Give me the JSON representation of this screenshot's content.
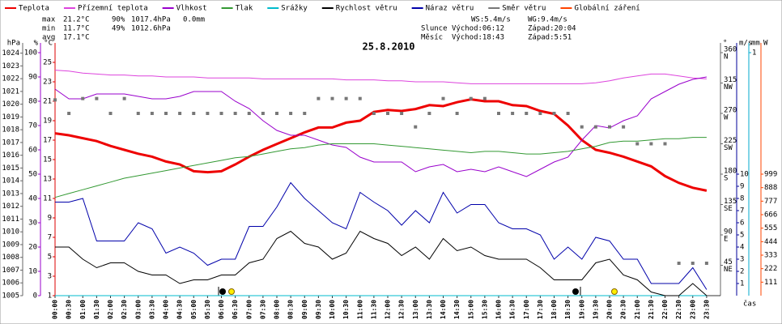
{
  "chart_data": {
    "type": "line",
    "title": "25.8.2010",
    "x_label": "čas",
    "stats": {
      "max": {
        "label": "max",
        "temp": "21.2°C",
        "hum": "90%",
        "press": "1017.4hPa",
        "rain": "0.0mm"
      },
      "min": {
        "label": "min",
        "temp": "11.7°C",
        "hum": "49%",
        "press": "1012.6hPa"
      },
      "avg": {
        "label": "avg",
        "temp": "17.1°C"
      },
      "wind": {
        "ws": "WS:5.4m/s",
        "wg": "WG:9.4m/s"
      },
      "sun": {
        "label": "Slunce",
        "rise": "Východ:06:12",
        "set": "Západ:20:04"
      },
      "moon": {
        "label": "Měsíc",
        "rise": "Východ:18:43",
        "set": "Západ:5:51"
      }
    },
    "categories": [
      "00:00",
      "00:30",
      "01:00",
      "01:30",
      "02:00",
      "02:30",
      "03:00",
      "03:30",
      "04:00",
      "04:30",
      "05:00",
      "05:30",
      "06:00",
      "06:30",
      "07:00",
      "07:30",
      "08:00",
      "08:30",
      "09:00",
      "09:30",
      "10:00",
      "10:30",
      "11:00",
      "11:30",
      "12:00",
      "12:30",
      "13:00",
      "13:30",
      "14:00",
      "14:30",
      "15:00",
      "15:30",
      "16:00",
      "16:30",
      "17:00",
      "17:30",
      "18:00",
      "18:30",
      "19:00",
      "19:30",
      "20:00",
      "20:30",
      "21:00",
      "21:30",
      "22:00",
      "22:30",
      "23:00",
      "23:30"
    ],
    "axes": {
      "press": {
        "unit": "hPa",
        "side": "left",
        "color": "#666666",
        "ylim": [
          1005,
          1024.8
        ],
        "yticks": [
          1005,
          1006,
          1007,
          1008,
          1009,
          1010,
          1011,
          1012,
          1013,
          1014,
          1015,
          1016,
          1017,
          1018,
          1019,
          1020,
          1021,
          1022,
          1023,
          1024
        ]
      },
      "hum": {
        "unit": "%",
        "side": "left",
        "color": "#9900cc",
        "ylim": [
          0,
          104
        ],
        "yticks": [
          0,
          10,
          20,
          30,
          40,
          50,
          60,
          70,
          80,
          90,
          100
        ]
      },
      "temp": {
        "unit": "°C",
        "side": "left",
        "color": "#dd0000",
        "ylim": [
          1,
          27
        ],
        "yticks": [
          1,
          3,
          5,
          7,
          9,
          11,
          13,
          15,
          17,
          19,
          21,
          23,
          25
        ]
      },
      "dir": {
        "unit": "°",
        "side": "right",
        "color": "#666666",
        "ylim": [
          0,
          374.4
        ],
        "yticks": [
          45,
          90,
          135,
          180,
          225,
          270,
          315,
          360
        ],
        "compass": [
          "NE",
          "E",
          "SE",
          "S",
          "SW",
          "W",
          "NW",
          "N"
        ]
      },
      "wind": {
        "unit": "m/s",
        "side": "right",
        "color": "#000099",
        "ylim": [
          0,
          20.8
        ],
        "yticks": [
          1,
          2,
          3,
          4,
          5,
          6,
          7,
          8,
          9,
          10
        ]
      },
      "rain": {
        "unit": "mm",
        "side": "right",
        "color": "#00aacc",
        "ylim": [
          0,
          1.04
        ],
        "yticks": [
          1
        ]
      },
      "rad": {
        "unit": "W",
        "side": "right",
        "color": "#ff4400",
        "ylim": [
          0,
          2078
        ],
        "yticks": [
          111,
          222,
          333,
          444,
          555,
          666,
          777,
          888,
          999
        ]
      }
    },
    "series": [
      {
        "name": "Teplota",
        "color": "#ee0000",
        "axis": "temp",
        "width": 3,
        "values": [
          17.7,
          17.5,
          17.2,
          16.9,
          16.4,
          16.0,
          15.6,
          15.3,
          14.8,
          14.5,
          13.8,
          13.7,
          13.8,
          14.5,
          15.3,
          16.0,
          16.6,
          17.2,
          17.8,
          18.3,
          18.3,
          18.8,
          19.0,
          19.9,
          20.1,
          20.0,
          20.2,
          20.6,
          20.5,
          20.9,
          21.2,
          21.0,
          21.0,
          20.6,
          20.5,
          20.0,
          19.7,
          18.5,
          17.0,
          16.0,
          15.7,
          15.3,
          14.8,
          14.3,
          13.3,
          12.6,
          12.1,
          11.8
        ]
      },
      {
        "name": "Přízemní teplota",
        "color": "#dd44dd",
        "axis": "temp",
        "width": 1,
        "values": [
          24.2,
          24.1,
          23.9,
          23.8,
          23.7,
          23.7,
          23.6,
          23.6,
          23.5,
          23.5,
          23.5,
          23.4,
          23.4,
          23.4,
          23.4,
          23.3,
          23.3,
          23.3,
          23.3,
          23.3,
          23.3,
          23.2,
          23.2,
          23.2,
          23.1,
          23.1,
          23.0,
          23.0,
          23.0,
          22.9,
          22.8,
          22.8,
          22.8,
          22.8,
          22.8,
          22.8,
          22.8,
          22.8,
          22.8,
          22.9,
          23.1,
          23.4,
          23.6,
          23.8,
          23.8,
          23.6,
          23.4,
          23.3
        ]
      },
      {
        "name": "Vlhkost",
        "color": "#9900cc",
        "axis": "hum",
        "width": 1,
        "values": [
          85,
          81,
          81,
          83,
          83,
          83,
          82,
          81,
          81,
          82,
          84,
          84,
          84,
          80,
          77,
          72,
          68,
          66,
          66,
          64,
          62,
          61,
          57,
          55,
          55,
          55,
          51,
          53,
          54,
          51,
          52,
          51,
          53,
          51,
          49,
          52,
          55,
          57,
          64,
          70,
          69,
          72,
          74,
          81,
          84,
          87,
          89,
          90
        ]
      },
      {
        "name": "Tlak",
        "color": "#339933",
        "axis": "press",
        "width": 1,
        "values": [
          1012.7,
          1013.0,
          1013.3,
          1013.6,
          1013.9,
          1014.2,
          1014.4,
          1014.6,
          1014.8,
          1015.0,
          1015.2,
          1015.4,
          1015.6,
          1015.8,
          1015.9,
          1016.1,
          1016.3,
          1016.5,
          1016.6,
          1016.8,
          1016.9,
          1016.9,
          1016.9,
          1016.9,
          1016.8,
          1016.7,
          1016.6,
          1016.5,
          1016.4,
          1016.3,
          1016.2,
          1016.3,
          1016.3,
          1016.2,
          1016.1,
          1016.1,
          1016.2,
          1016.3,
          1016.5,
          1016.7,
          1017.0,
          1017.1,
          1017.1,
          1017.2,
          1017.3,
          1017.3,
          1017.4,
          1017.4
        ]
      },
      {
        "name": "Srážky",
        "color": "#00bbcc",
        "axis": "rain",
        "width": 1,
        "values": [
          0,
          0,
          0,
          0,
          0,
          0,
          0,
          0,
          0,
          0,
          0,
          0,
          0,
          0,
          0,
          0,
          0,
          0,
          0,
          0,
          0,
          0,
          0,
          0,
          0,
          0,
          0,
          0,
          0,
          0,
          0,
          0,
          0,
          0,
          0,
          0,
          0,
          0,
          0,
          0,
          0,
          0,
          0,
          0,
          0,
          0,
          0,
          0
        ]
      },
      {
        "name": "Rychlost větru",
        "color": "#000000",
        "axis": "wind",
        "width": 1,
        "values": [
          4.0,
          4.0,
          3.0,
          2.3,
          2.7,
          2.7,
          2.0,
          1.7,
          1.7,
          1.0,
          1.3,
          1.3,
          1.7,
          1.7,
          2.7,
          3.0,
          4.7,
          5.3,
          4.3,
          4.0,
          3.0,
          3.5,
          5.3,
          4.7,
          4.3,
          3.3,
          4.0,
          3.0,
          4.7,
          3.7,
          4.0,
          3.3,
          3.0,
          3.0,
          3.0,
          2.3,
          1.3,
          1.3,
          1.3,
          2.7,
          3.0,
          1.7,
          1.3,
          0.3,
          0,
          0,
          1.0,
          0
        ]
      },
      {
        "name": "Náraz větru",
        "color": "#0000aa",
        "axis": "wind",
        "width": 1,
        "values": [
          7.7,
          7.7,
          8.0,
          4.5,
          4.5,
          4.5,
          6.0,
          5.5,
          3.5,
          4.0,
          3.5,
          2.5,
          3.0,
          3.0,
          5.7,
          5.7,
          7.3,
          9.3,
          8.0,
          7.0,
          6.0,
          5.5,
          8.5,
          7.7,
          7.0,
          5.8,
          7.0,
          6.0,
          8.5,
          6.8,
          7.5,
          7.5,
          6.0,
          5.5,
          5.5,
          5.0,
          3.0,
          4.0,
          3.0,
          4.8,
          4.5,
          3.0,
          3.0,
          1.0,
          1.0,
          1.0,
          2.3,
          0.5
        ]
      },
      {
        "name": "Směr větru",
        "color": "#777777",
        "axis": "dir",
        "style": "squares",
        "values": [
          290,
          270,
          292,
          292,
          270,
          292,
          270,
          270,
          270,
          270,
          270,
          270,
          270,
          270,
          270,
          270,
          270,
          270,
          270,
          292,
          292,
          292,
          292,
          270,
          270,
          270,
          250,
          270,
          292,
          270,
          292,
          292,
          270,
          270,
          270,
          270,
          270,
          270,
          250,
          250,
          250,
          250,
          225,
          225,
          225,
          48,
          48,
          48
        ]
      },
      {
        "name": "Globální záření",
        "color": "#ff4400",
        "axis": "rad"
      }
    ]
  }
}
